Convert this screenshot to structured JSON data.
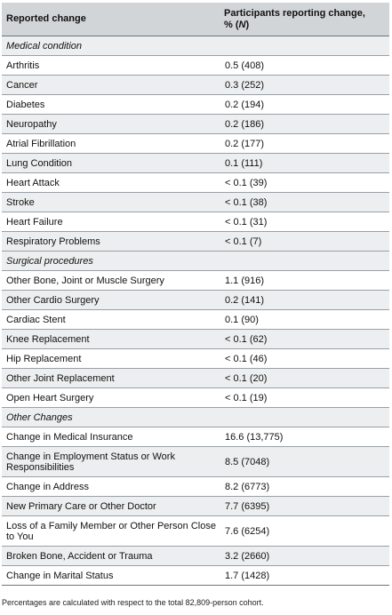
{
  "header": {
    "col1": "Reported change",
    "col2_line1": "Participants reporting change,",
    "col2_line2_pct": "% (",
    "col2_line2_n": "N",
    "col2_line2_close": ")"
  },
  "sections": [
    {
      "title": "Medical condition",
      "rows": [
        {
          "change": "Arthritis",
          "value": "0.5 (408)"
        },
        {
          "change": "Cancer",
          "value": "0.3 (252)"
        },
        {
          "change": "Diabetes",
          "value": "0.2 (194)"
        },
        {
          "change": "Neuropathy",
          "value": "0.2 (186)"
        },
        {
          "change": "Atrial Fibrillation",
          "value": "0.2 (177)"
        },
        {
          "change": "Lung Condition",
          "value": "0.1 (111)"
        },
        {
          "change": "Heart Attack",
          "value": "< 0.1 (39)"
        },
        {
          "change": "Stroke",
          "value": "< 0.1 (38)"
        },
        {
          "change": "Heart Failure",
          "value": "< 0.1 (31)"
        },
        {
          "change": "Respiratory Problems",
          "value": "< 0.1 (7)"
        }
      ]
    },
    {
      "title": "Surgical procedures",
      "rows": [
        {
          "change": "Other Bone, Joint or Muscle Surgery",
          "value": "1.1 (916)"
        },
        {
          "change": "Other Cardio Surgery",
          "value": "0.2 (141)"
        },
        {
          "change": "Cardiac Stent",
          "value": "0.1 (90)"
        },
        {
          "change": "Knee Replacement",
          "value": "< 0.1 (62)"
        },
        {
          "change": "Hip Replacement",
          "value": "< 0.1 (46)"
        },
        {
          "change": "Other Joint Replacement",
          "value": "< 0.1 (20)"
        },
        {
          "change": "Open Heart Surgery",
          "value": "< 0.1 (19)"
        }
      ]
    },
    {
      "title": "Other Changes",
      "rows": [
        {
          "change": "Change in Medical Insurance",
          "value": "16.6 (13,775)"
        },
        {
          "change": "Change in Employment Status or Work Responsibilities",
          "value": "8.5 (7048)"
        },
        {
          "change": "Change in Address",
          "value": "8.2 (6773)"
        },
        {
          "change": "New Primary Care or Other Doctor",
          "value": "7.7 (6395)"
        },
        {
          "change": "Loss of a Family Member or Other Person Close to You",
          "value": "7.6 (6254)"
        },
        {
          "change": "Broken Bone, Accident or Trauma",
          "value": "3.2 (2660)"
        },
        {
          "change": "Change in Marital Status",
          "value": "1.7 (1428)"
        }
      ]
    }
  ],
  "footnote": "Percentages are calculated with respect to the total 82,809-person cohort."
}
